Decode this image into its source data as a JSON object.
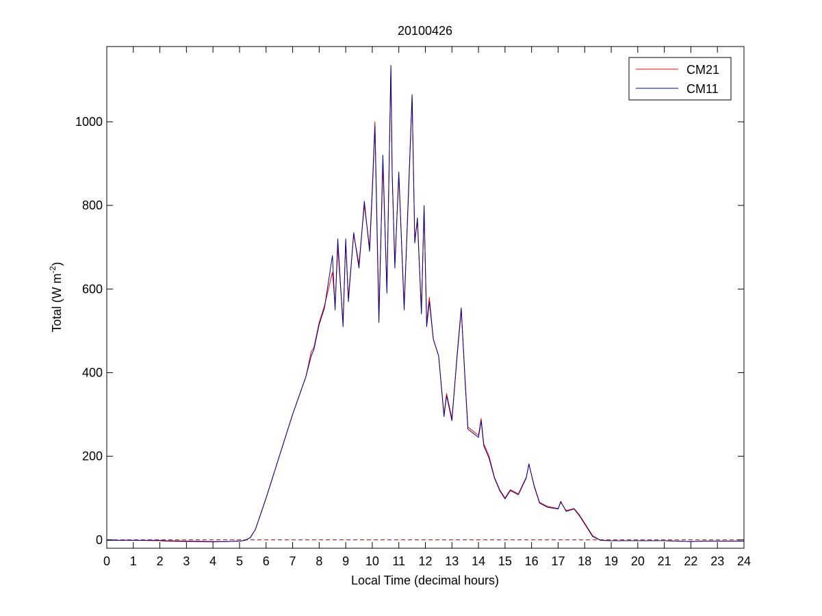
{
  "chart_data": {
    "type": "line",
    "title": "20100426",
    "xlabel": "Local Time (decimal hours)",
    "ylabel": {
      "base": "Total (W m",
      "superscript": "-2",
      "close": ")"
    },
    "xlim": [
      0,
      24
    ],
    "ylim": [
      -20,
      1180
    ],
    "x_ticks": [
      0,
      1,
      2,
      3,
      4,
      5,
      6,
      7,
      8,
      9,
      10,
      11,
      12,
      13,
      14,
      15,
      16,
      17,
      18,
      19,
      20,
      21,
      22,
      23,
      24
    ],
    "y_ticks": [
      0,
      200,
      400,
      600,
      800,
      1000
    ],
    "grid": false,
    "legend_position": "top-right",
    "reference_line": {
      "y": 0,
      "style": "dashed",
      "color": "#8b0000"
    },
    "series": [
      {
        "name": "CM21",
        "color": "#ff0000",
        "x": [
          0,
          1,
          2,
          2.2,
          3,
          4,
          4.5,
          5,
          5.2,
          5.4,
          5.6,
          6,
          6.5,
          7,
          7.5,
          7.7,
          7.8,
          8,
          8.2,
          8.5,
          8.6,
          8.7,
          8.9,
          9.0,
          9.1,
          9.3,
          9.5,
          9.7,
          9.9,
          10.0,
          10.1,
          10.25,
          10.4,
          10.55,
          10.7,
          10.75,
          10.85,
          11.0,
          11.2,
          11.35,
          11.5,
          11.6,
          11.7,
          11.85,
          11.95,
          12.05,
          12.15,
          12.3,
          12.5,
          12.7,
          12.8,
          12.9,
          13.0,
          13.2,
          13.35,
          13.5,
          13.6,
          13.8,
          14.0,
          14.1,
          14.2,
          14.4,
          14.6,
          14.8,
          15.0,
          15.2,
          15.5,
          15.8,
          15.9,
          16.1,
          16.3,
          16.6,
          17.0,
          17.1,
          17.3,
          17.6,
          17.8,
          18.0,
          18.3,
          18.6,
          19.0,
          20,
          21,
          22,
          22.5,
          23,
          24
        ],
        "y": [
          -1,
          -1,
          -2,
          -3,
          -4,
          -5,
          -4,
          -3,
          -1,
          5,
          25,
          100,
          200,
          300,
          390,
          450,
          460,
          520,
          560,
          640,
          560,
          700,
          520,
          710,
          580,
          730,
          660,
          800,
          700,
          840,
          1000,
          540,
          900,
          600,
          1130,
          870,
          660,
          870,
          560,
          800,
          1060,
          720,
          760,
          550,
          790,
          520,
          580,
          480,
          440,
          300,
          350,
          320,
          290,
          440,
          550,
          380,
          270,
          260,
          250,
          290,
          230,
          200,
          150,
          120,
          100,
          120,
          110,
          150,
          180,
          130,
          90,
          80,
          75,
          90,
          70,
          75,
          60,
          40,
          10,
          -1,
          -2,
          -2,
          -2,
          -4,
          -3,
          -3,
          -3
        ]
      },
      {
        "name": "CM11",
        "color": "#00008b",
        "x": [
          0,
          1,
          2,
          2.2,
          3,
          4,
          4.5,
          5,
          5.2,
          5.4,
          5.6,
          6,
          6.5,
          7,
          7.5,
          7.7,
          7.8,
          8,
          8.2,
          8.5,
          8.6,
          8.7,
          8.9,
          9.0,
          9.1,
          9.3,
          9.5,
          9.7,
          9.9,
          10.0,
          10.1,
          10.25,
          10.4,
          10.55,
          10.7,
          10.75,
          10.85,
          11.0,
          11.2,
          11.35,
          11.5,
          11.6,
          11.7,
          11.85,
          11.95,
          12.05,
          12.15,
          12.3,
          12.5,
          12.7,
          12.8,
          12.9,
          13.0,
          13.2,
          13.35,
          13.5,
          13.6,
          13.8,
          14.0,
          14.1,
          14.2,
          14.4,
          14.6,
          14.8,
          15.0,
          15.2,
          15.5,
          15.8,
          15.9,
          16.1,
          16.3,
          16.6,
          17.0,
          17.1,
          17.3,
          17.6,
          17.8,
          18.0,
          18.3,
          18.6,
          19.0,
          20,
          21,
          22,
          22.5,
          23,
          24
        ],
        "y": [
          -1,
          -1,
          -1,
          -2,
          -3,
          -4,
          -4,
          -3,
          -1,
          5,
          25,
          100,
          200,
          300,
          390,
          440,
          455,
          515,
          555,
          680,
          550,
          720,
          510,
          720,
          570,
          735,
          650,
          810,
          690,
          830,
          990,
          520,
          920,
          590,
          1135,
          880,
          650,
          880,
          550,
          810,
          1065,
          710,
          770,
          540,
          800,
          510,
          570,
          480,
          440,
          295,
          345,
          315,
          285,
          445,
          555,
          375,
          265,
          255,
          245,
          285,
          225,
          195,
          148,
          118,
          98,
          118,
          108,
          148,
          182,
          128,
          88,
          78,
          74,
          92,
          68,
          74,
          58,
          38,
          8,
          -1,
          -2,
          -2,
          -2,
          -4,
          -3,
          -3,
          -3
        ]
      }
    ]
  }
}
